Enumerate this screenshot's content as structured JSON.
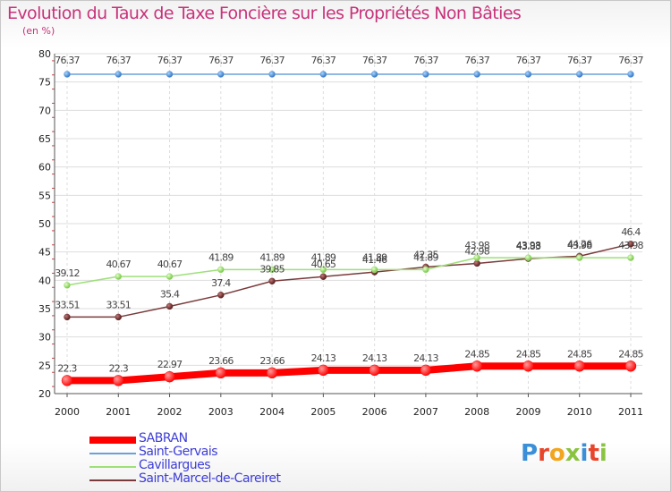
{
  "header": {
    "title": "Evolution du Taux de Taxe Foncière sur les Propriétés Non Bâties",
    "subtitle": "(en %)"
  },
  "brand": {
    "logo_text": "Proxiti"
  },
  "colors": {
    "title": "#c8327a",
    "legend_text": "#3d3dd6",
    "grid": "#dddddd",
    "axis": "#555555"
  },
  "chart_data": {
    "type": "line",
    "title": "Evolution du Taux de Taxe Foncière sur les Propriétés Non Bâties",
    "ylabel": "(en %)",
    "xlabel": "",
    "categories": [
      "2000",
      "2001",
      "2002",
      "2003",
      "2004",
      "2005",
      "2006",
      "2007",
      "2008",
      "2009",
      "2010",
      "2011"
    ],
    "ylim": [
      20,
      80
    ],
    "yticks": [
      20,
      25,
      30,
      35,
      40,
      45,
      50,
      55,
      60,
      65,
      70,
      75,
      80
    ],
    "grid": true,
    "legend_position": "bottom-left",
    "series": [
      {
        "name": "SABRAN",
        "color": "#ff0000",
        "values": [
          22.3,
          22.3,
          22.97,
          23.66,
          23.66,
          24.13,
          24.13,
          24.13,
          24.85,
          24.85,
          24.85,
          24.85
        ],
        "labels": [
          "22.3",
          "22.3",
          "22.97",
          "23.66",
          "23.66",
          "24.13",
          "24.13",
          "24.13",
          "24.85",
          "24.85",
          "24.85",
          "24.85"
        ]
      },
      {
        "name": "Saint-Gervais",
        "color": "#6aa1d8",
        "values": [
          76.37,
          76.37,
          76.37,
          76.37,
          76.37,
          76.37,
          76.37,
          76.37,
          76.37,
          76.37,
          76.37,
          76.37
        ],
        "labels": [
          "76.37",
          "76.37",
          "76.37",
          "76.37",
          "76.37",
          "76.37",
          "76.37",
          "76.37",
          "76.37",
          "76.37",
          "76.37",
          "76.37"
        ]
      },
      {
        "name": "Cavillargues",
        "color": "#9ee07a",
        "values": [
          39.12,
          40.67,
          40.67,
          41.89,
          41.89,
          41.89,
          41.89,
          41.89,
          43.98,
          43.98,
          43.98,
          43.98
        ],
        "labels": [
          "39.12",
          "40.67",
          "40.67",
          "41.89",
          "41.89",
          "41.89",
          "41.89",
          "41.89",
          "43.98",
          "43.98",
          "43.98",
          "43.98"
        ]
      },
      {
        "name": "Saint-Marcel-de-Careiret",
        "color": "#7a3a3a",
        "values": [
          33.51,
          33.51,
          35.4,
          37.4,
          39.85,
          40.65,
          41.46,
          42.35,
          42.98,
          43.83,
          44.26,
          46.4
        ],
        "labels": [
          "33.51",
          "33.51",
          "35.4",
          "37.4",
          "39.85",
          "40.65",
          "41.46",
          "42.35",
          "42.98",
          "43.83",
          "44.26",
          "46.4"
        ]
      }
    ]
  }
}
